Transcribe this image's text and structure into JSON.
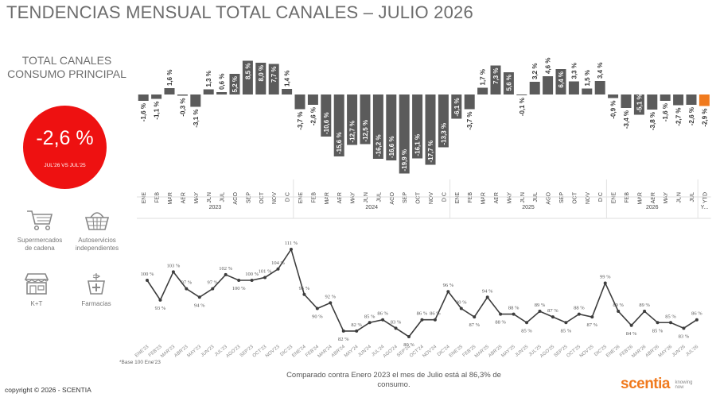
{
  "title": "TENDENCIAS MENSUAL TOTAL CANALES – JULIO 2026",
  "kpi": {
    "label_line1": "TOTAL CANALES",
    "label_line2": "CONSUMO PRINCIPAL",
    "value": "-2,6 %",
    "subtitle": "JUL'26 VS JUL'25",
    "color": "#ee1111"
  },
  "channels": [
    {
      "icon": "shopping-cart-icon",
      "label_line1": "Supermercados",
      "label_line2": "de cadena"
    },
    {
      "icon": "shopping-basket-icon",
      "label_line1": "Autoservicios",
      "label_line2": "independientes"
    },
    {
      "icon": "storefront-icon",
      "label_line1": "K+T",
      "label_line2": ""
    },
    {
      "icon": "pharmacy-icon",
      "label_line1": "Farmacias",
      "label_line2": ""
    }
  ],
  "chart_data": [
    {
      "type": "bar",
      "colors": {
        "bar": "#5b5b5b",
        "highlight": "#f07a1e"
      },
      "years": [
        {
          "label": "2023",
          "count": 12
        },
        {
          "label": "2024",
          "count": 12
        },
        {
          "label": "2025",
          "count": 12
        },
        {
          "label": "2026",
          "count": 7
        },
        {
          "label": "Y...",
          "count": 1
        }
      ],
      "categories": [
        "ENE",
        "FEB",
        "MAR",
        "ABR",
        "MAY",
        "JUN",
        "JUL",
        "AGO",
        "SEP",
        "OCT",
        "NOV",
        "DIC",
        "ENE",
        "FEB",
        "MAR",
        "ABR",
        "MAY",
        "JUN",
        "JUL",
        "AGO",
        "SEP",
        "OCT",
        "NOV",
        "DIC",
        "ENE",
        "FEB",
        "MAR",
        "ABR",
        "MAY",
        "JUN",
        "JUL",
        "AGO",
        "SEP",
        "OCT",
        "NOV",
        "DIC",
        "ENE",
        "FEB",
        "MAR",
        "ABR",
        "MAY",
        "JUN",
        "JUL",
        "YTD"
      ],
      "values": [
        -1.6,
        -1.1,
        1.6,
        -0.3,
        -3.1,
        1.3,
        0.6,
        5.2,
        8.5,
        8.0,
        7.7,
        1.4,
        -3.7,
        -2.6,
        -10.6,
        -15.6,
        -12.7,
        -12.5,
        -16.2,
        -16.6,
        -19.9,
        -16.1,
        -17.7,
        -13.3,
        -6.1,
        -3.7,
        1.7,
        7.3,
        5.6,
        -0.1,
        3.2,
        4.6,
        6.4,
        3.3,
        1.5,
        3.4,
        -0.9,
        -3.4,
        -5.1,
        -3.8,
        -1.6,
        -2.7,
        -2.6,
        -2.9
      ],
      "labels": [
        "-1,6 %",
        "-1,1 %",
        "1,6 %",
        "-0,3 %",
        "-3,1 %",
        "1,3 %",
        "0,6 %",
        "5,2 %",
        "8,5 %",
        "8,0 %",
        "7,7 %",
        "1,4 %",
        "-3,7 %",
        "-2,6 %",
        "-10,6 %",
        "-15,6 %",
        "-12,7 %",
        "-12,5 %",
        "-16,2 %",
        "-16,6 %",
        "-19,9 %",
        "-16,1 %",
        "-17,7 %",
        "-13,3 %",
        "-6,1 %",
        "-3,7 %",
        "1,7 %",
        "7,3 %",
        "5,6 %",
        "-0,1 %",
        "3,2 %",
        "4,6 %",
        "6,4 %",
        "3,3 %",
        "1,5 %",
        "3,4 %",
        "-0,9 %",
        "-3,4 %",
        "-5,1 %",
        "-3,8 %",
        "-1,6 %",
        "-2,7 %",
        "-2,6 %",
        "-2,9 %"
      ]
    },
    {
      "type": "line",
      "color": "#3d3d3d",
      "x": [
        "ENE'23",
        "FEB'23",
        "MAR'23",
        "ABR'23",
        "MAY'23",
        "JUN'23",
        "JUL'23",
        "AGO'23",
        "SEP'23",
        "OCT'23",
        "NOV'23",
        "DIC'23",
        "ENE'24",
        "FEB'24",
        "MAR'24",
        "ABR'24",
        "MAY'24",
        "JUN'24",
        "JUL'24",
        "AGO'24",
        "SEP'24",
        "OCT'24",
        "NOV'24",
        "DIC'24",
        "ENE'25",
        "FEB'25",
        "MAR'25",
        "ABR'25",
        "MAY'25",
        "JUN'25",
        "JUL'25",
        "AGO'25",
        "SEP'25",
        "OCT'25",
        "NOV'25",
        "DIC'25",
        "ENE'26",
        "FEB'26",
        "MAR'26",
        "ABR'26",
        "MAY'26",
        "JUN'26",
        "JUL'26"
      ],
      "values": [
        100,
        93,
        103,
        97,
        94,
        97,
        102,
        100,
        100,
        101,
        104,
        111,
        95,
        90,
        92,
        82,
        82,
        85,
        86,
        83,
        80,
        86,
        86,
        96,
        90,
        87,
        94,
        88,
        88,
        85,
        89,
        87,
        85,
        88,
        87,
        99,
        89,
        84,
        89,
        85,
        85,
        83,
        86
      ],
      "labels": [
        "100 %",
        "93 %",
        "103 %",
        "97 %",
        "94 %",
        "97 %",
        "102 %",
        "100 %",
        "100 %",
        "101 %",
        "104 %",
        "111 %",
        "95 %",
        "90 %",
        "92 %",
        "82 %",
        "82 %",
        "85 %",
        "86 %",
        "83 %",
        "80 %",
        "86 %",
        "86 %",
        "96 %",
        "90 %",
        "87 %",
        "94 %",
        "88 %",
        "88 %",
        "85 %",
        "89 %",
        "87 %",
        "85 %",
        "88 %",
        "87 %",
        "99 %",
        "89 %",
        "84 %",
        "89 %",
        "85 %",
        "85 %",
        "83 %",
        "86 %"
      ]
    }
  ],
  "footnote": "*Base 100 Ene'23",
  "comparison_line1": "Comparado contra Enero 2023 el mes de Julio está al 86,3% de",
  "comparison_line2": "consumo.",
  "copyright": "copyright © 2026 - SCENTIA",
  "logo": {
    "word": "scentia",
    "tag_line1": "knowing",
    "tag_line2": "now"
  }
}
